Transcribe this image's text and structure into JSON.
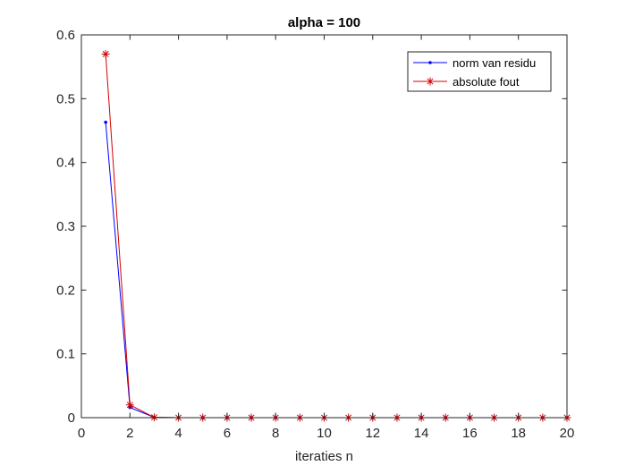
{
  "chart_data": {
    "type": "line",
    "title": "alpha = 100",
    "xlabel": "iteraties n",
    "ylabel": "",
    "xlim": [
      0,
      20
    ],
    "ylim": [
      0,
      0.6
    ],
    "xticks": [
      0,
      2,
      4,
      6,
      8,
      10,
      12,
      14,
      16,
      18,
      20
    ],
    "yticks": [
      0,
      0.1,
      0.2,
      0.3,
      0.4,
      0.5,
      0.6
    ],
    "xtick_labels": [
      "0",
      "2",
      "4",
      "6",
      "8",
      "10",
      "12",
      "14",
      "16",
      "18",
      "20"
    ],
    "ytick_labels": [
      "0",
      "0.1",
      "0.2",
      "0.3",
      "0.4",
      "0.5",
      "0.6"
    ],
    "grid": false,
    "legend_position": "top-right",
    "x": [
      1,
      2,
      3,
      4,
      5,
      6,
      7,
      8,
      9,
      10,
      11,
      12,
      13,
      14,
      15,
      16,
      17,
      18,
      19,
      20
    ],
    "series": [
      {
        "name": "norm van residu",
        "color": "#0000ff",
        "marker": "dot",
        "values": [
          0.463,
          0.016,
          0.0005,
          0,
          0,
          0,
          0,
          0,
          0,
          0,
          0,
          0,
          0,
          0,
          0,
          0,
          0,
          0,
          0,
          0
        ]
      },
      {
        "name": "absolute fout",
        "color": "#d40000",
        "marker": "asterisk",
        "values": [
          0.57,
          0.02,
          0.0005,
          0,
          0,
          0,
          0,
          0,
          0,
          0,
          0,
          0,
          0,
          0,
          0,
          0,
          0,
          0,
          0,
          0
        ]
      }
    ]
  }
}
